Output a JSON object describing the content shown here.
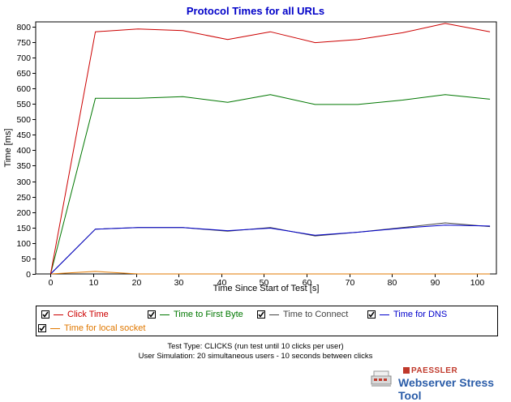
{
  "chart_data": {
    "type": "line",
    "title": "Protocol Times for all URLs",
    "xlabel": "Time Since Start of Test [s]",
    "ylabel": "Time [ms]",
    "xlim": [
      -3.5,
      104.5
    ],
    "ylim": [
      0,
      815
    ],
    "xticks": [
      0,
      10,
      20,
      30,
      40,
      50,
      60,
      70,
      80,
      90,
      100
    ],
    "yticks": [
      0,
      50,
      100,
      150,
      200,
      250,
      300,
      350,
      400,
      450,
      500,
      550,
      600,
      650,
      700,
      750,
      800
    ],
    "grid": false,
    "legend_position": "bottom",
    "series": [
      {
        "name": "Click Time",
        "color": "#cc0000",
        "checked": true,
        "x": [
          0,
          10.5,
          20.5,
          31,
          41.5,
          51.5,
          62,
          72,
          82.5,
          92.5,
          103
        ],
        "y": [
          0,
          783,
          792,
          787,
          758,
          783,
          748,
          758,
          780,
          810,
          783
        ]
      },
      {
        "name": "Time to First Byte",
        "color": "#007700",
        "checked": true,
        "x": [
          0,
          10.5,
          20.5,
          31,
          41.5,
          51.5,
          62,
          72,
          82.5,
          92.5,
          103
        ],
        "y": [
          0,
          568,
          568,
          573,
          555,
          580,
          548,
          548,
          562,
          580,
          565
        ]
      },
      {
        "name": "Time to Connect",
        "color": "#444444",
        "checked": true,
        "x": [
          0,
          10.5,
          20.5,
          31,
          41.5,
          51.5,
          62,
          72,
          82.5,
          92.5,
          103
        ],
        "y": [
          0,
          145,
          150,
          150,
          138,
          150,
          123,
          135,
          150,
          165,
          153
        ]
      },
      {
        "name": "Time for DNS",
        "color": "#0000cc",
        "checked": true,
        "x": [
          0,
          10.5,
          20.5,
          31,
          41.5,
          51.5,
          62,
          72,
          82.5,
          92.5,
          103
        ],
        "y": [
          0,
          145,
          150,
          150,
          140,
          148,
          125,
          135,
          148,
          158,
          155
        ]
      },
      {
        "name": "Time for local socket",
        "color": "#e07800",
        "checked": true,
        "x": [
          0,
          10.5,
          20.5,
          31,
          41.5,
          51.5,
          62,
          72,
          82.5,
          92.5,
          103
        ],
        "y": [
          0,
          8,
          0,
          0,
          0,
          0,
          0,
          0,
          0,
          0,
          0
        ]
      }
    ]
  },
  "footer": {
    "line1": "Test Type: CLICKS (run test until 10 clicks per user)",
    "line2": "User Simulation: 20 simultaneous users - 10 seconds between clicks"
  },
  "brand": {
    "top": "PAESSLER",
    "main": "Webserver Stress Tool"
  }
}
